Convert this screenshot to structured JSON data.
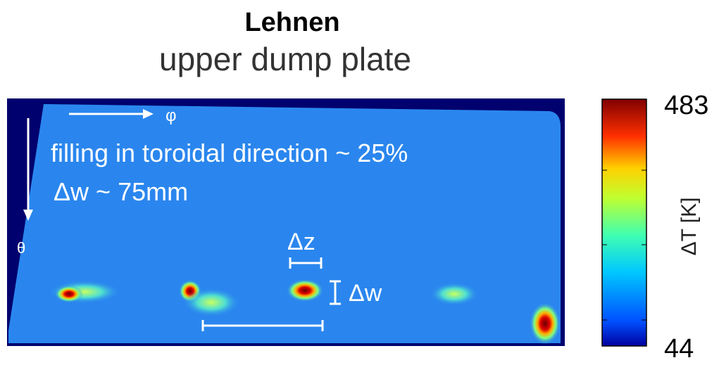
{
  "header": {
    "title": "Lehnen",
    "subtitle": "upper dump plate"
  },
  "image": {
    "annotations": {
      "phi": "φ",
      "theta": "θ",
      "filling": "filling in toroidal direction ~ 25%",
      "width": "Δw ~ 75mm",
      "dz": "Δz",
      "dw": "Δw"
    }
  },
  "colorbar": {
    "max": 483,
    "min": 44,
    "label": "ΔT [K]"
  }
}
